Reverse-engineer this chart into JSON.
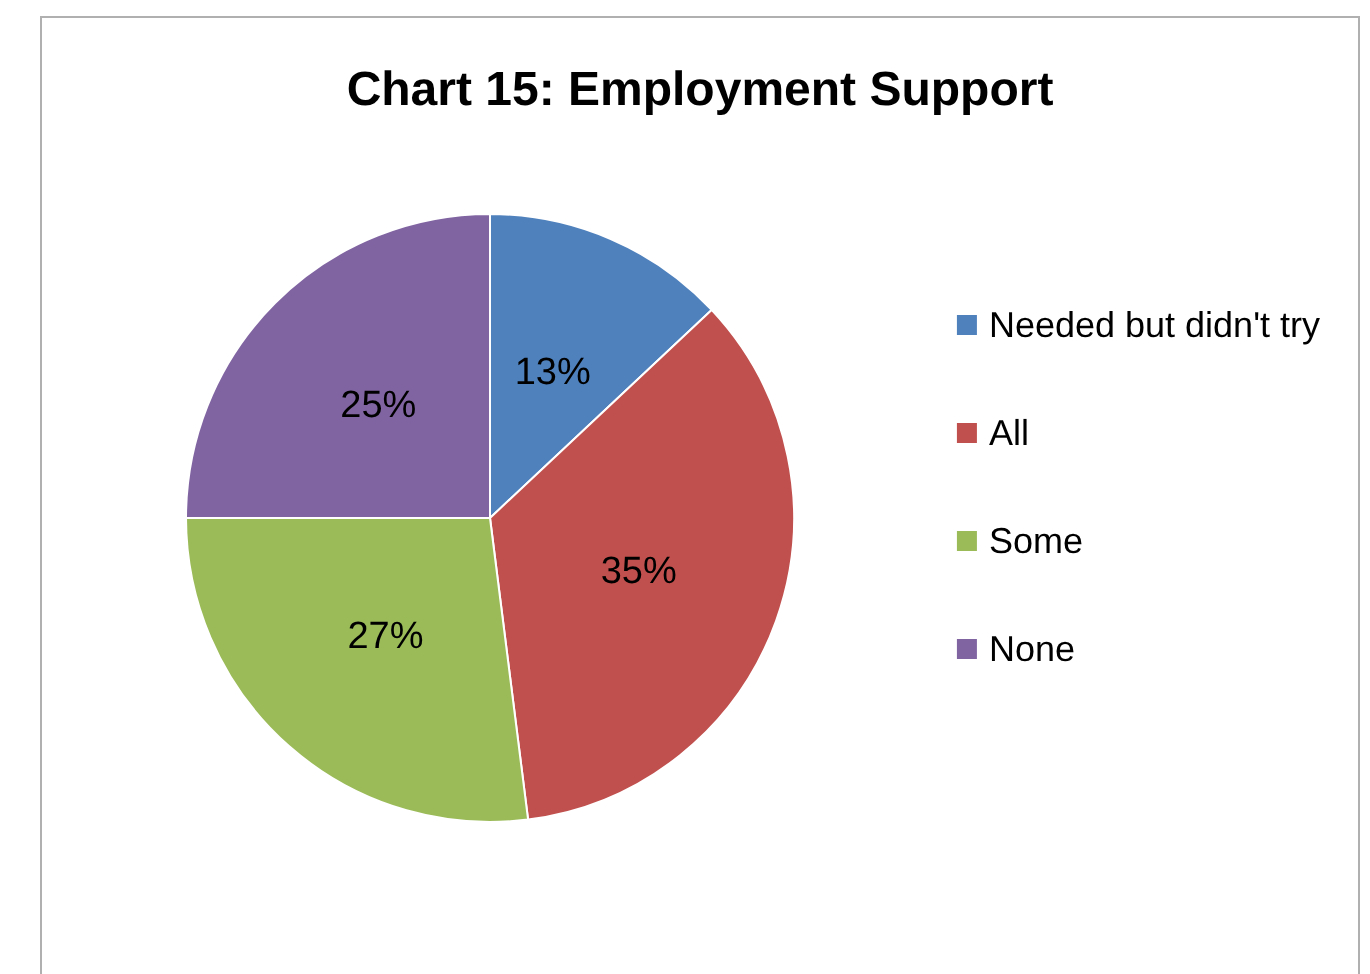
{
  "chart_data": {
    "type": "pie",
    "title": "Chart 15: Employment Support",
    "categories": [
      "Needed but didn't try",
      "All",
      "Some",
      "None"
    ],
    "values": [
      13,
      35,
      27,
      25
    ],
    "value_labels": [
      "13%",
      "35%",
      "27%",
      "25%"
    ],
    "colors": [
      "#4f81bd",
      "#c0504d",
      "#9bbb59",
      "#8064a2"
    ],
    "legend": "right"
  }
}
